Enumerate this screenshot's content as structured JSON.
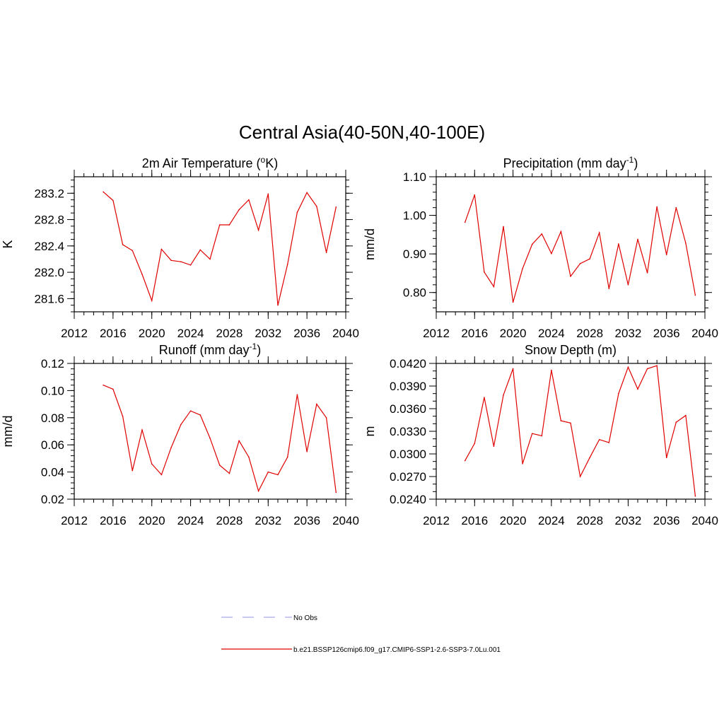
{
  "figure": {
    "title": "Central Asia(40-50N,40-100E)"
  },
  "legend": {
    "items": [
      {
        "label": "No Obs",
        "color": "#a8a8e8",
        "dash": "dashed"
      },
      {
        "label": "b.e21.BSSP126cmip6.f09_g17.CMIP6-SSP1-2.6-SSP3-7.0Lu.001",
        "color": "#e00000",
        "dash": "solid"
      }
    ]
  },
  "chart_data": [
    {
      "type": "line",
      "title": "2m Air Temperature (oK)",
      "title_parts": {
        "pre": "2m Air Temperature (",
        "sup": "o",
        "post": "K)"
      },
      "xlabel": "",
      "ylabel": "K",
      "xlim": [
        2012,
        2040
      ],
      "ylim": [
        281.4,
        283.45
      ],
      "xticks": [
        2012,
        2016,
        2020,
        2024,
        2028,
        2032,
        2036,
        2040
      ],
      "yticks": [
        281.6,
        282.0,
        282.4,
        282.8,
        283.2
      ],
      "ytick_labels": [
        "281.6",
        "282.0",
        "282.4",
        "282.8",
        "283.2"
      ],
      "x_minor_step": 1,
      "y_minor_step": 0.1,
      "color": "#e00000",
      "x": [
        2015,
        2016,
        2017,
        2018,
        2019,
        2020,
        2021,
        2022,
        2023,
        2024,
        2025,
        2026,
        2027,
        2028,
        2029,
        2030,
        2031,
        2032,
        2033,
        2034,
        2035,
        2036,
        2037,
        2038,
        2039
      ],
      "y": [
        283.22,
        283.09,
        282.42,
        282.33,
        281.97,
        281.57,
        282.35,
        282.18,
        282.16,
        282.11,
        282.34,
        282.2,
        282.72,
        282.72,
        282.95,
        283.1,
        282.64,
        283.19,
        281.5,
        282.12,
        282.91,
        283.21,
        283.0,
        282.3,
        282.99
      ]
    },
    {
      "type": "line",
      "title": "Precipitation (mm day-1)",
      "title_parts": {
        "pre": "Precipitation (mm day",
        "sup": "-1",
        "post": ")"
      },
      "xlabel": "",
      "ylabel": "mm/d",
      "xlim": [
        2012,
        2040
      ],
      "ylim": [
        0.75,
        1.1
      ],
      "xticks": [
        2012,
        2016,
        2020,
        2024,
        2028,
        2032,
        2036,
        2040
      ],
      "yticks": [
        0.8,
        0.9,
        1.0,
        1.1
      ],
      "ytick_labels": [
        "0.80",
        "0.90",
        "1.00",
        "1.10"
      ],
      "x_minor_step": 1,
      "y_minor_step": 0.02,
      "color": "#e00000",
      "x": [
        2015,
        2016,
        2017,
        2018,
        2019,
        2020,
        2021,
        2022,
        2023,
        2024,
        2025,
        2026,
        2027,
        2028,
        2029,
        2030,
        2031,
        2032,
        2033,
        2034,
        2035,
        2036,
        2037,
        2038,
        2039
      ],
      "y": [
        0.982,
        1.053,
        0.853,
        0.815,
        0.971,
        0.775,
        0.862,
        0.925,
        0.952,
        0.901,
        0.958,
        0.842,
        0.875,
        0.887,
        0.955,
        0.81,
        0.926,
        0.82,
        0.938,
        0.851,
        1.022,
        0.898,
        1.02,
        0.928,
        0.793
      ]
    },
    {
      "type": "line",
      "title": "Runoff (mm day-1)",
      "title_parts": {
        "pre": "Runoff (mm day",
        "sup": "-1",
        "post": ")"
      },
      "xlabel": "",
      "ylabel": "mm/d",
      "xlim": [
        2012,
        2040
      ],
      "ylim": [
        0.02,
        0.12
      ],
      "xticks": [
        2012,
        2016,
        2020,
        2024,
        2028,
        2032,
        2036,
        2040
      ],
      "yticks": [
        0.02,
        0.04,
        0.06,
        0.08,
        0.1,
        0.12
      ],
      "ytick_labels": [
        "0.02",
        "0.04",
        "0.06",
        "0.08",
        "0.10",
        "0.12"
      ],
      "x_minor_step": 1,
      "y_minor_step": 0.004,
      "color": "#e00000",
      "x": [
        2015,
        2016,
        2017,
        2018,
        2019,
        2020,
        2021,
        2022,
        2023,
        2024,
        2025,
        2026,
        2027,
        2028,
        2029,
        2030,
        2031,
        2032,
        2033,
        2034,
        2035,
        2036,
        2037,
        2038,
        2039
      ],
      "y": [
        0.104,
        0.101,
        0.081,
        0.041,
        0.071,
        0.046,
        0.038,
        0.058,
        0.075,
        0.085,
        0.082,
        0.065,
        0.045,
        0.039,
        0.063,
        0.051,
        0.026,
        0.04,
        0.038,
        0.051,
        0.097,
        0.055,
        0.09,
        0.08,
        0.025
      ]
    },
    {
      "type": "line",
      "title": "Snow Depth (m)",
      "title_parts": {
        "pre": "Snow Depth (m)",
        "sup": "",
        "post": ""
      },
      "xlabel": "",
      "ylabel": "m",
      "xlim": [
        2012,
        2040
      ],
      "ylim": [
        0.024,
        0.042
      ],
      "xticks": [
        2012,
        2016,
        2020,
        2024,
        2028,
        2032,
        2036,
        2040
      ],
      "yticks": [
        0.024,
        0.027,
        0.03,
        0.033,
        0.036,
        0.039,
        0.042
      ],
      "ytick_labels": [
        "0.0240",
        "0.0270",
        "0.0300",
        "0.0330",
        "0.0360",
        "0.0390",
        "0.0420"
      ],
      "x_minor_step": 1,
      "y_minor_step": 0.001,
      "color": "#e00000",
      "x": [
        2015,
        2016,
        2017,
        2018,
        2019,
        2020,
        2021,
        2022,
        2023,
        2024,
        2025,
        2026,
        2027,
        2028,
        2029,
        2030,
        2031,
        2032,
        2033,
        2034,
        2035,
        2036,
        2037,
        2038,
        2039
      ],
      "y": [
        0.0291,
        0.0314,
        0.0375,
        0.031,
        0.0378,
        0.0413,
        0.0287,
        0.0327,
        0.0324,
        0.0411,
        0.0344,
        0.0341,
        0.027,
        0.0295,
        0.0319,
        0.0315,
        0.038,
        0.0415,
        0.0386,
        0.0413,
        0.0417,
        0.0295,
        0.0342,
        0.0351,
        0.0244
      ]
    }
  ]
}
